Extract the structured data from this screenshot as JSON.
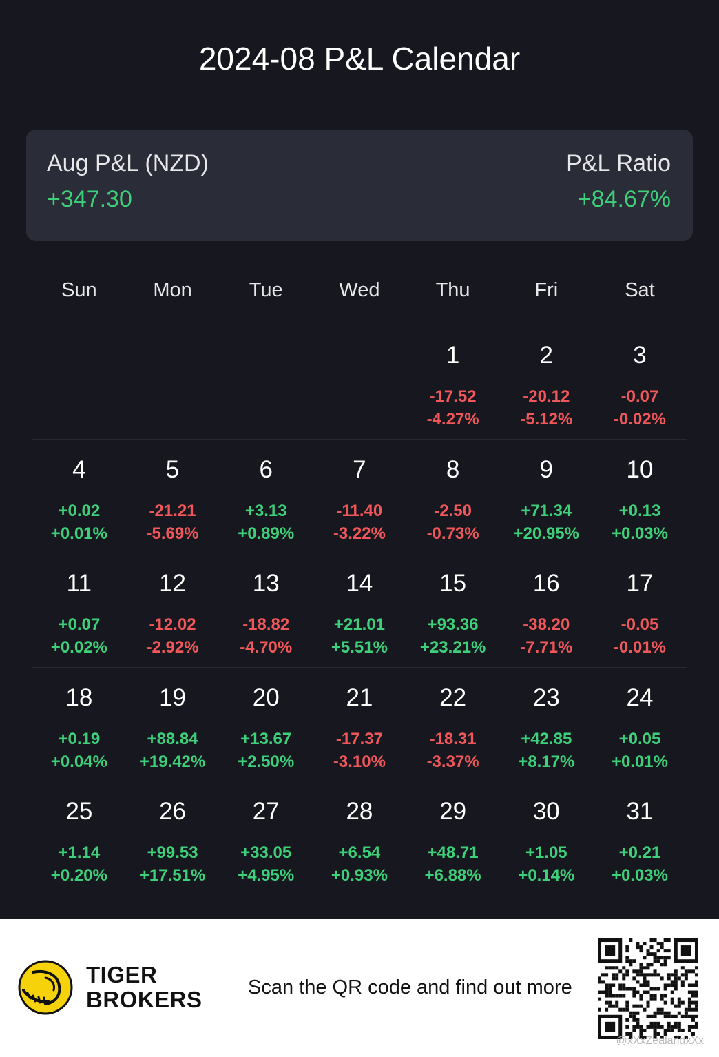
{
  "title": "2024-08 P&L Calendar",
  "summary": {
    "left_label": "Aug P&L (NZD)",
    "left_value": "+347.30",
    "right_label": "P&L Ratio",
    "right_value": "+84.67%"
  },
  "weekdays": [
    "Sun",
    "Mon",
    "Tue",
    "Wed",
    "Thu",
    "Fri",
    "Sat"
  ],
  "weeks": [
    [
      {
        "day": "",
        "pnl": "",
        "pct": "",
        "sign": ""
      },
      {
        "day": "",
        "pnl": "",
        "pct": "",
        "sign": ""
      },
      {
        "day": "",
        "pnl": "",
        "pct": "",
        "sign": ""
      },
      {
        "day": "",
        "pnl": "",
        "pct": "",
        "sign": ""
      },
      {
        "day": "1",
        "pnl": "-17.52",
        "pct": "-4.27%",
        "sign": "neg"
      },
      {
        "day": "2",
        "pnl": "-20.12",
        "pct": "-5.12%",
        "sign": "neg"
      },
      {
        "day": "3",
        "pnl": "-0.07",
        "pct": "-0.02%",
        "sign": "neg"
      }
    ],
    [
      {
        "day": "4",
        "pnl": "+0.02",
        "pct": "+0.01%",
        "sign": "pos"
      },
      {
        "day": "5",
        "pnl": "-21.21",
        "pct": "-5.69%",
        "sign": "neg"
      },
      {
        "day": "6",
        "pnl": "+3.13",
        "pct": "+0.89%",
        "sign": "pos"
      },
      {
        "day": "7",
        "pnl": "-11.40",
        "pct": "-3.22%",
        "sign": "neg"
      },
      {
        "day": "8",
        "pnl": "-2.50",
        "pct": "-0.73%",
        "sign": "neg"
      },
      {
        "day": "9",
        "pnl": "+71.34",
        "pct": "+20.95%",
        "sign": "pos"
      },
      {
        "day": "10",
        "pnl": "+0.13",
        "pct": "+0.03%",
        "sign": "pos"
      }
    ],
    [
      {
        "day": "11",
        "pnl": "+0.07",
        "pct": "+0.02%",
        "sign": "pos"
      },
      {
        "day": "12",
        "pnl": "-12.02",
        "pct": "-2.92%",
        "sign": "neg"
      },
      {
        "day": "13",
        "pnl": "-18.82",
        "pct": "-4.70%",
        "sign": "neg"
      },
      {
        "day": "14",
        "pnl": "+21.01",
        "pct": "+5.51%",
        "sign": "pos"
      },
      {
        "day": "15",
        "pnl": "+93.36",
        "pct": "+23.21%",
        "sign": "pos"
      },
      {
        "day": "16",
        "pnl": "-38.20",
        "pct": "-7.71%",
        "sign": "neg"
      },
      {
        "day": "17",
        "pnl": "-0.05",
        "pct": "-0.01%",
        "sign": "neg"
      }
    ],
    [
      {
        "day": "18",
        "pnl": "+0.19",
        "pct": "+0.04%",
        "sign": "pos"
      },
      {
        "day": "19",
        "pnl": "+88.84",
        "pct": "+19.42%",
        "sign": "pos"
      },
      {
        "day": "20",
        "pnl": "+13.67",
        "pct": "+2.50%",
        "sign": "pos"
      },
      {
        "day": "21",
        "pnl": "-17.37",
        "pct": "-3.10%",
        "sign": "neg"
      },
      {
        "day": "22",
        "pnl": "-18.31",
        "pct": "-3.37%",
        "sign": "neg"
      },
      {
        "day": "23",
        "pnl": "+42.85",
        "pct": "+8.17%",
        "sign": "pos"
      },
      {
        "day": "24",
        "pnl": "+0.05",
        "pct": "+0.01%",
        "sign": "pos"
      }
    ],
    [
      {
        "day": "25",
        "pnl": "+1.14",
        "pct": "+0.20%",
        "sign": "pos"
      },
      {
        "day": "26",
        "pnl": "+99.53",
        "pct": "+17.51%",
        "sign": "pos"
      },
      {
        "day": "27",
        "pnl": "+33.05",
        "pct": "+4.95%",
        "sign": "pos"
      },
      {
        "day": "28",
        "pnl": "+6.54",
        "pct": "+0.93%",
        "sign": "pos"
      },
      {
        "day": "29",
        "pnl": "+48.71",
        "pct": "+6.88%",
        "sign": "pos"
      },
      {
        "day": "30",
        "pnl": "+1.05",
        "pct": "+0.14%",
        "sign": "pos"
      },
      {
        "day": "31",
        "pnl": "+0.21",
        "pct": "+0.03%",
        "sign": "pos"
      }
    ]
  ],
  "footer": {
    "brand_line1": "TIGER",
    "brand_line2": "BROKERS",
    "scan_text": "Scan the QR code and find out more",
    "watermark": "@xXxZealandxXx",
    "logo_icon": "tiger-logo-icon",
    "qr_icon": "qr-code-icon"
  },
  "colors": {
    "background": "#17181f",
    "card": "#2a2c37",
    "positive": "#3ecf7a",
    "negative": "#f0575a",
    "logo_yellow": "#f5d20a"
  }
}
